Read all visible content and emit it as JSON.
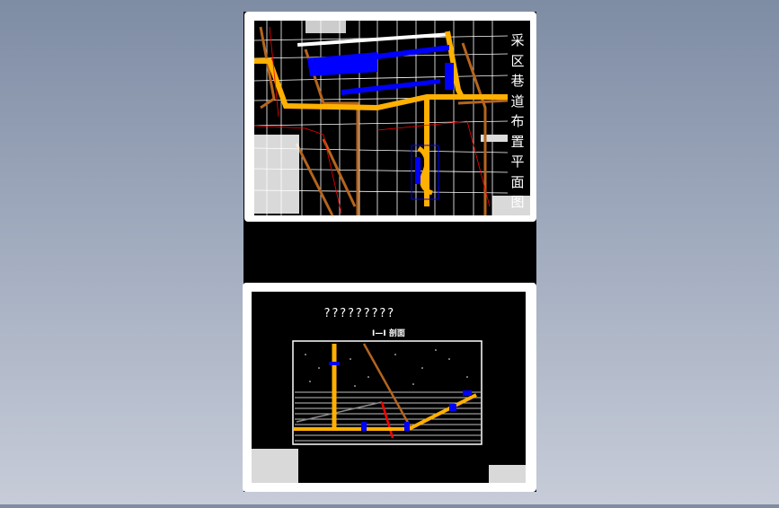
{
  "drawing": {
    "sheet1_title": "采区巷道布置平面图",
    "sheet2_title": "?????????",
    "sheet2_section_label": "I—I 剖面"
  },
  "colors": {
    "background_top": "#7e8ca4",
    "background_bottom": "#c7ccd8",
    "cad_canvas": "#000000",
    "roadway_main": "#ffb000",
    "roadway_secondary": "#b5651d",
    "equipment": "#0000ff",
    "boundary": "#ff0000",
    "grid": "#ffffff"
  }
}
